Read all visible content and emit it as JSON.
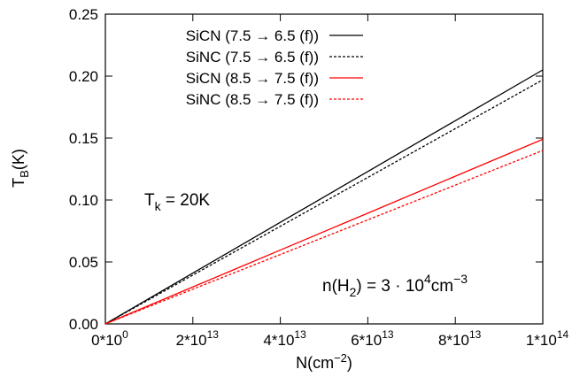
{
  "chart_data": {
    "type": "line",
    "xlabel": "N(cm",
    "xlabel_sup": "−2",
    "xlabel_close": ")",
    "ylabel": "T",
    "ylabel_sub": "B",
    "ylabel_rest": "(K)",
    "xlim": [
      0,
      100000000000000.0
    ],
    "ylim": [
      0,
      0.25
    ],
    "grid": false,
    "legend_placement": "top-left",
    "x_ticks": [
      {
        "value": 0,
        "base": "0*10",
        "exp": "0"
      },
      {
        "value": 20000000000000.0,
        "base": "2*10",
        "exp": "13"
      },
      {
        "value": 40000000000000.0,
        "base": "4*10",
        "exp": "13"
      },
      {
        "value": 60000000000000.0,
        "base": "6*10",
        "exp": "13"
      },
      {
        "value": 80000000000000.0,
        "base": "8*10",
        "exp": "13"
      },
      {
        "value": 100000000000000.0,
        "base": "1*10",
        "exp": "14"
      }
    ],
    "y_ticks": [
      {
        "value": 0.0,
        "label": "0.00"
      },
      {
        "value": 0.05,
        "label": "0.05"
      },
      {
        "value": 0.1,
        "label": "0.10"
      },
      {
        "value": 0.15,
        "label": "0.15"
      },
      {
        "value": 0.2,
        "label": "0.20"
      },
      {
        "value": 0.25,
        "label": "0.25"
      }
    ],
    "series": [
      {
        "name": "SiCN (7.5 → 6.5 (f))",
        "color": "#000000",
        "dash": "solid",
        "x": [
          0,
          10000000000000.0,
          20000000000000.0,
          40000000000000.0,
          60000000000000.0,
          80000000000000.0,
          100000000000000.0
        ],
        "y": [
          0,
          0.0205,
          0.041,
          0.082,
          0.123,
          0.164,
          0.205
        ]
      },
      {
        "name": "SiNC (7.5 → 6.5 (f))",
        "color": "#000000",
        "dash": "dashed",
        "x": [
          0,
          10000000000000.0,
          20000000000000.0,
          40000000000000.0,
          60000000000000.0,
          80000000000000.0,
          100000000000000.0
        ],
        "y": [
          0,
          0.0197,
          0.0394,
          0.0788,
          0.1182,
          0.1576,
          0.197
        ]
      },
      {
        "name": "SiCN (8.5 → 7.5 (f))",
        "color": "#ff0000",
        "dash": "solid",
        "x": [
          0,
          10000000000000.0,
          20000000000000.0,
          40000000000000.0,
          60000000000000.0,
          80000000000000.0,
          100000000000000.0
        ],
        "y": [
          0,
          0.0149,
          0.0298,
          0.0596,
          0.0894,
          0.1192,
          0.149
        ]
      },
      {
        "name": "SiNC (8.5 → 7.5 (f))",
        "color": "#ff0000",
        "dash": "dashed",
        "x": [
          0,
          10000000000000.0,
          20000000000000.0,
          40000000000000.0,
          60000000000000.0,
          80000000000000.0,
          100000000000000.0
        ],
        "y": [
          0,
          0.014,
          0.028,
          0.056,
          0.084,
          0.112,
          0.14
        ]
      }
    ],
    "annotations": {
      "tk_main": "T",
      "tk_sub": "k",
      "tk_rest": " = 20K",
      "density_pre": "n(H",
      "density_sub": "2",
      "density_mid": ") = 3 · 10",
      "density_exp": "4",
      "density_unit": "cm",
      "density_unit_exp": "−3"
    }
  }
}
